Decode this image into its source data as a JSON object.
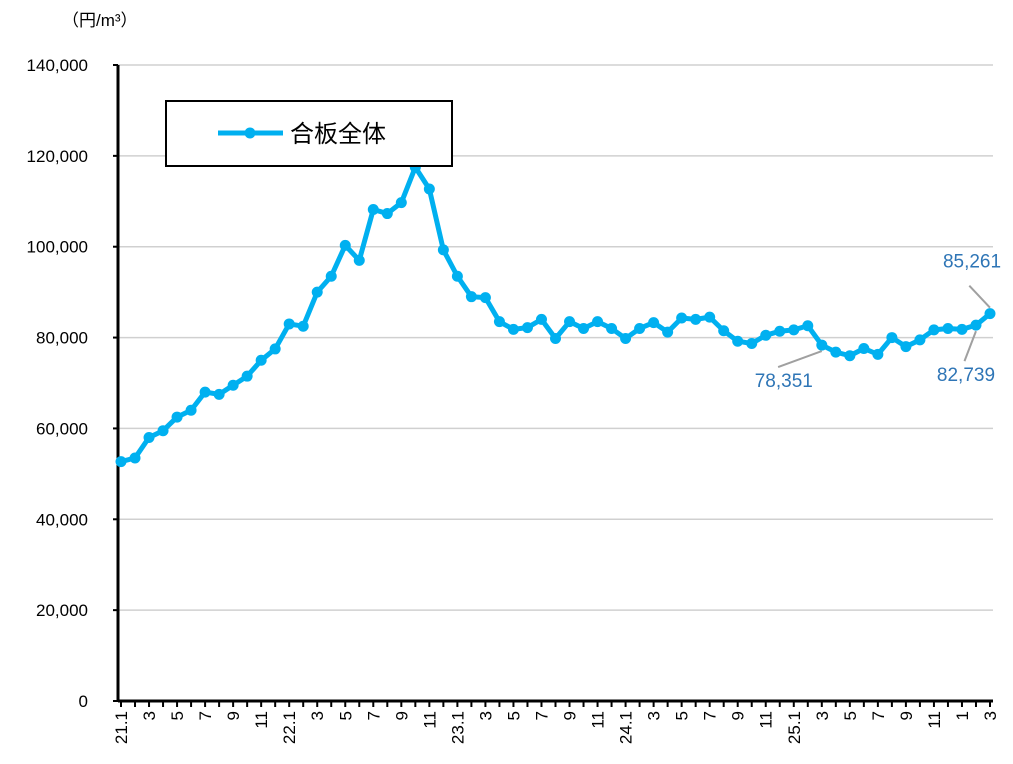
{
  "chart_data": {
    "type": "line",
    "y_label": "（円/m³）",
    "categories": [
      "21.1",
      null,
      "3",
      null,
      "5",
      null,
      "7",
      null,
      "9",
      null,
      "11",
      null,
      "22.1",
      null,
      "3",
      null,
      "5",
      null,
      "7",
      null,
      "9",
      null,
      "11",
      null,
      "23.1",
      null,
      "3",
      null,
      "5",
      null,
      "7",
      null,
      "9",
      null,
      "11",
      null,
      "24.1",
      null,
      "3",
      null,
      "5",
      null,
      "7",
      null,
      "9",
      null,
      "11",
      null,
      "25.1",
      null,
      "3",
      null,
      "5",
      null,
      "7",
      null,
      "9",
      null,
      "11",
      null,
      "1",
      null,
      "3"
    ],
    "series": [
      {
        "name": "合板全体",
        "color": "#00b0f0",
        "values": [
          52700,
          53500,
          58000,
          59500,
          62500,
          64000,
          68000,
          67500,
          69500,
          71500,
          75000,
          77500,
          83000,
          82500,
          90000,
          93500,
          100300,
          97000,
          108200,
          107300,
          109700,
          117500,
          112700,
          99300,
          93500,
          89000,
          88800,
          83500,
          81800,
          82200,
          84000,
          79800,
          83500,
          82000,
          83500,
          82000,
          79800,
          82000,
          83300,
          81200,
          84300,
          84000,
          84500,
          81500,
          79200,
          78700,
          80500,
          81400,
          81700,
          82600,
          78351,
          76800,
          76000,
          77600,
          76300,
          80000,
          78000,
          79500,
          81700,
          82000,
          81800,
          82739,
          85261
        ],
        "value_labels": [
          null,
          null,
          null,
          null,
          null,
          null,
          null,
          null,
          null,
          null,
          null,
          null,
          null,
          null,
          null,
          null,
          null,
          null,
          null,
          null,
          null,
          null,
          null,
          null,
          null,
          null,
          null,
          null,
          null,
          null,
          null,
          null,
          null,
          null,
          null,
          null,
          null,
          null,
          null,
          null,
          null,
          null,
          null,
          null,
          null,
          null,
          null,
          null,
          null,
          null,
          "78,351",
          null,
          null,
          null,
          null,
          null,
          null,
          null,
          null,
          null,
          null,
          "82,739",
          "85,261"
        ]
      }
    ],
    "ylim": [
      0,
      140000
    ],
    "yticks": [
      0,
      {
        "value": 20000,
        "label": "20,000"
      },
      {
        "value": 40000,
        "label": "40,000"
      },
      {
        "value": 60000,
        "label": "60,000"
      },
      {
        "value": 80000,
        "label": "80,000"
      },
      {
        "value": 100000,
        "label": "100,000"
      },
      {
        "value": 120000,
        "label": "120,000"
      },
      {
        "value": 140000,
        "label": "140,000"
      }
    ],
    "grid": true,
    "legend": "upper left"
  }
}
